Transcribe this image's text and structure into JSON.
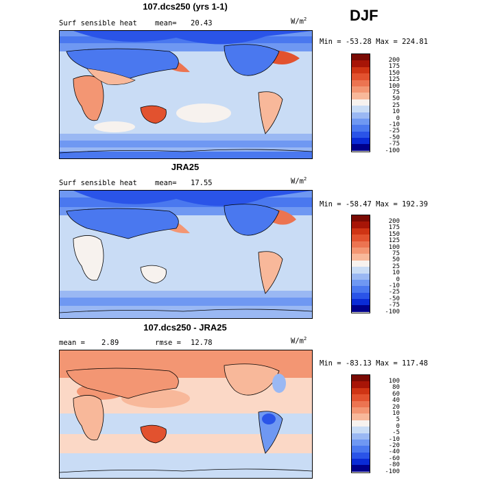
{
  "season": "DJF",
  "panels": [
    {
      "title": "107.dcs250 (yrs 1-1)",
      "left_label": "Surf sensible heat",
      "stat_label": "mean=",
      "stat_value": "20.43",
      "units": "W/m",
      "units_sup": "2",
      "minmax": "Min = -53.28 Max = 224.81",
      "colorbar_labels": [
        "200",
        "175",
        "150",
        "125",
        "100",
        "75",
        "50",
        "25",
        "10",
        "0",
        "-10",
        "-25",
        "-50",
        "-75",
        "-100"
      ]
    },
    {
      "title": "JRA25",
      "left_label": "Surf sensible heat",
      "stat_label": "mean=",
      "stat_value": "17.55",
      "units": "W/m",
      "units_sup": "2",
      "minmax": "Min = -58.47 Max = 192.39",
      "colorbar_labels": [
        "200",
        "175",
        "150",
        "125",
        "100",
        "75",
        "50",
        "25",
        "10",
        "0",
        "-10",
        "-25",
        "-50",
        "-75",
        "-100"
      ]
    },
    {
      "title": "107.dcs250 - JRA25",
      "left_label": "mean =",
      "stat_label": "rmse =",
      "left_value": "2.89",
      "stat_value": "12.78",
      "units": "W/m",
      "units_sup": "2",
      "minmax": "Min = -83.13 Max = 117.48",
      "colorbar_labels": [
        "100",
        "80",
        "60",
        "40",
        "20",
        "10",
        "5",
        "0",
        "-5",
        "-10",
        "-20",
        "-40",
        "-60",
        "-80",
        "-100"
      ]
    }
  ],
  "colors": {
    "scale": [
      "#00008b",
      "#0a2bd6",
      "#2a54e8",
      "#4a78ef",
      "#6f98f2",
      "#9ab8f3",
      "#c9dcf5",
      "#f7f2ee",
      "#fbd8c6",
      "#f8b89a",
      "#f39673",
      "#ec7451",
      "#e2522f",
      "#cf3414",
      "#a71507",
      "#7a0a03"
    ]
  }
}
